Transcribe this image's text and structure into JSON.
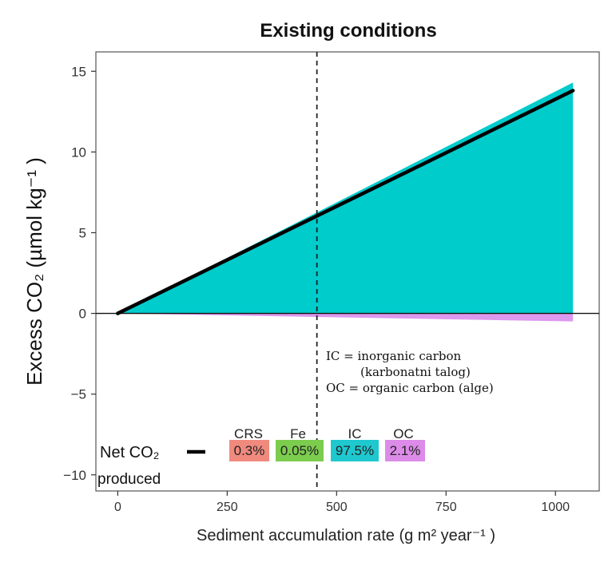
{
  "chart_data": {
    "type": "area",
    "title": "Existing conditions",
    "xlabel": "Sediment accumulation rate (g m² year⁻¹ )",
    "ylabel": "Excess CO₂ (µmol kg⁻¹ )",
    "xlim": [
      -50,
      1100
    ],
    "ylim": [
      -11,
      16.2
    ],
    "x_ticks": [
      0,
      250,
      500,
      750,
      1000
    ],
    "x_tick_labels": [
      "0",
      "250",
      "500",
      "750",
      "1000"
    ],
    "y_ticks": [
      -10,
      -5,
      0,
      5,
      10,
      15
    ],
    "y_tick_labels": [
      "−10",
      "−5",
      "0",
      "5",
      "10",
      "15"
    ],
    "series": [
      {
        "name": "IC",
        "role": "positive-area",
        "color": "#00cccc",
        "x": [
          0,
          1040
        ],
        "y": [
          0,
          14.3
        ]
      },
      {
        "name": "OC",
        "role": "negative-area",
        "color": "#dd99ee",
        "x": [
          0,
          1040
        ],
        "y": [
          0,
          -0.5
        ]
      },
      {
        "name": "Net CO₂ produced",
        "role": "line",
        "color": "#000000",
        "x": [
          0,
          1040
        ],
        "y": [
          0,
          13.8
        ]
      }
    ],
    "vline_x": 455,
    "grid": false,
    "legend": {
      "line_label_1": "Net CO₂",
      "line_label_2": "produced",
      "items": [
        {
          "name": "CRS",
          "pct": "0.3%",
          "color": "#f08a7e"
        },
        {
          "name": "Fe",
          "pct": "0.05%",
          "color": "#7ccc4e"
        },
        {
          "name": "IC",
          "pct": "97.5%",
          "color": "#1fc8cf"
        },
        {
          "name": "OC",
          "pct": "2.1%",
          "color": "#dc8ce8"
        }
      ]
    },
    "annotation": {
      "line1": "IC = inorganic carbon",
      "line2": "(karbonatni talog)",
      "line3": "OC = organic carbon (alge)"
    }
  }
}
